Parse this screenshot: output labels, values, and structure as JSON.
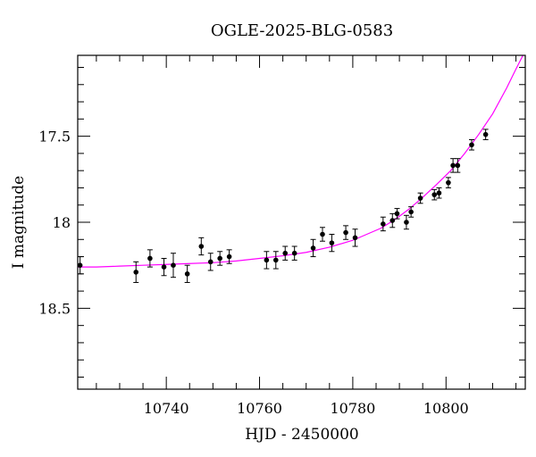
{
  "chart_data": {
    "type": "scatter",
    "title": "OGLE-2025-BLG-0583",
    "xlabel": "HJD - 2450000",
    "ylabel": "I magnitude",
    "xlim": [
      10721,
      10817
    ],
    "ylim": [
      18.97,
      17.03
    ],
    "y_inverted": true,
    "x_ticks": [
      10740,
      10760,
      10780,
      10800
    ],
    "x_tick_labels": [
      "10740",
      "10760",
      "10780",
      "10800"
    ],
    "y_ticks": [
      17.5,
      18,
      18.5
    ],
    "y_tick_labels": [
      "17.5",
      "18",
      "18.5"
    ],
    "grid": false,
    "legend": "none",
    "colors": {
      "points": "#000000",
      "model": "#ff00ff"
    },
    "series": [
      {
        "type": "scatter_errorbar",
        "points": [
          {
            "x": 10721.5,
            "y": 18.25,
            "err": 0.05
          },
          {
            "x": 10733.5,
            "y": 18.29,
            "err": 0.06
          },
          {
            "x": 10736.5,
            "y": 18.21,
            "err": 0.05
          },
          {
            "x": 10739.5,
            "y": 18.26,
            "err": 0.05
          },
          {
            "x": 10741.5,
            "y": 18.25,
            "err": 0.07
          },
          {
            "x": 10744.5,
            "y": 18.3,
            "err": 0.05
          },
          {
            "x": 10747.5,
            "y": 18.14,
            "err": 0.05
          },
          {
            "x": 10749.5,
            "y": 18.23,
            "err": 0.05
          },
          {
            "x": 10751.5,
            "y": 18.21,
            "err": 0.04
          },
          {
            "x": 10753.5,
            "y": 18.2,
            "err": 0.04
          },
          {
            "x": 10761.5,
            "y": 18.22,
            "err": 0.05
          },
          {
            "x": 10763.5,
            "y": 18.22,
            "err": 0.05
          },
          {
            "x": 10765.5,
            "y": 18.18,
            "err": 0.04
          },
          {
            "x": 10767.5,
            "y": 18.18,
            "err": 0.04
          },
          {
            "x": 10771.5,
            "y": 18.15,
            "err": 0.05
          },
          {
            "x": 10773.5,
            "y": 18.07,
            "err": 0.04
          },
          {
            "x": 10775.5,
            "y": 18.12,
            "err": 0.05
          },
          {
            "x": 10778.5,
            "y": 18.06,
            "err": 0.04
          },
          {
            "x": 10780.5,
            "y": 18.09,
            "err": 0.05
          },
          {
            "x": 10786.5,
            "y": 18.01,
            "err": 0.04
          },
          {
            "x": 10788.5,
            "y": 17.99,
            "err": 0.04
          },
          {
            "x": 10789.5,
            "y": 17.95,
            "err": 0.03
          },
          {
            "x": 10791.5,
            "y": 18.0,
            "err": 0.04
          },
          {
            "x": 10792.5,
            "y": 17.94,
            "err": 0.03
          },
          {
            "x": 10794.5,
            "y": 17.86,
            "err": 0.03
          },
          {
            "x": 10797.5,
            "y": 17.84,
            "err": 0.03
          },
          {
            "x": 10798.5,
            "y": 17.83,
            "err": 0.03
          },
          {
            "x": 10800.5,
            "y": 17.77,
            "err": 0.03
          },
          {
            "x": 10801.5,
            "y": 17.67,
            "err": 0.04
          },
          {
            "x": 10802.5,
            "y": 17.67,
            "err": 0.04
          },
          {
            "x": 10805.5,
            "y": 17.55,
            "err": 0.03
          },
          {
            "x": 10808.5,
            "y": 17.49,
            "err": 0.03
          }
        ]
      },
      {
        "type": "model_line",
        "x": [
          10721,
          10725,
          10730,
          10735,
          10740,
          10745,
          10750,
          10755,
          10760,
          10765,
          10770,
          10775,
          10780,
          10783,
          10786,
          10789,
          10792,
          10795,
          10798,
          10801,
          10804,
          10807,
          10810,
          10813,
          10815,
          10816.5
        ],
        "y": [
          18.26,
          18.26,
          18.255,
          18.25,
          18.245,
          18.24,
          18.235,
          18.225,
          18.21,
          18.195,
          18.175,
          18.145,
          18.105,
          18.07,
          18.035,
          17.985,
          17.925,
          17.855,
          17.78,
          17.7,
          17.6,
          17.49,
          17.37,
          17.22,
          17.11,
          17.03
        ]
      }
    ]
  }
}
